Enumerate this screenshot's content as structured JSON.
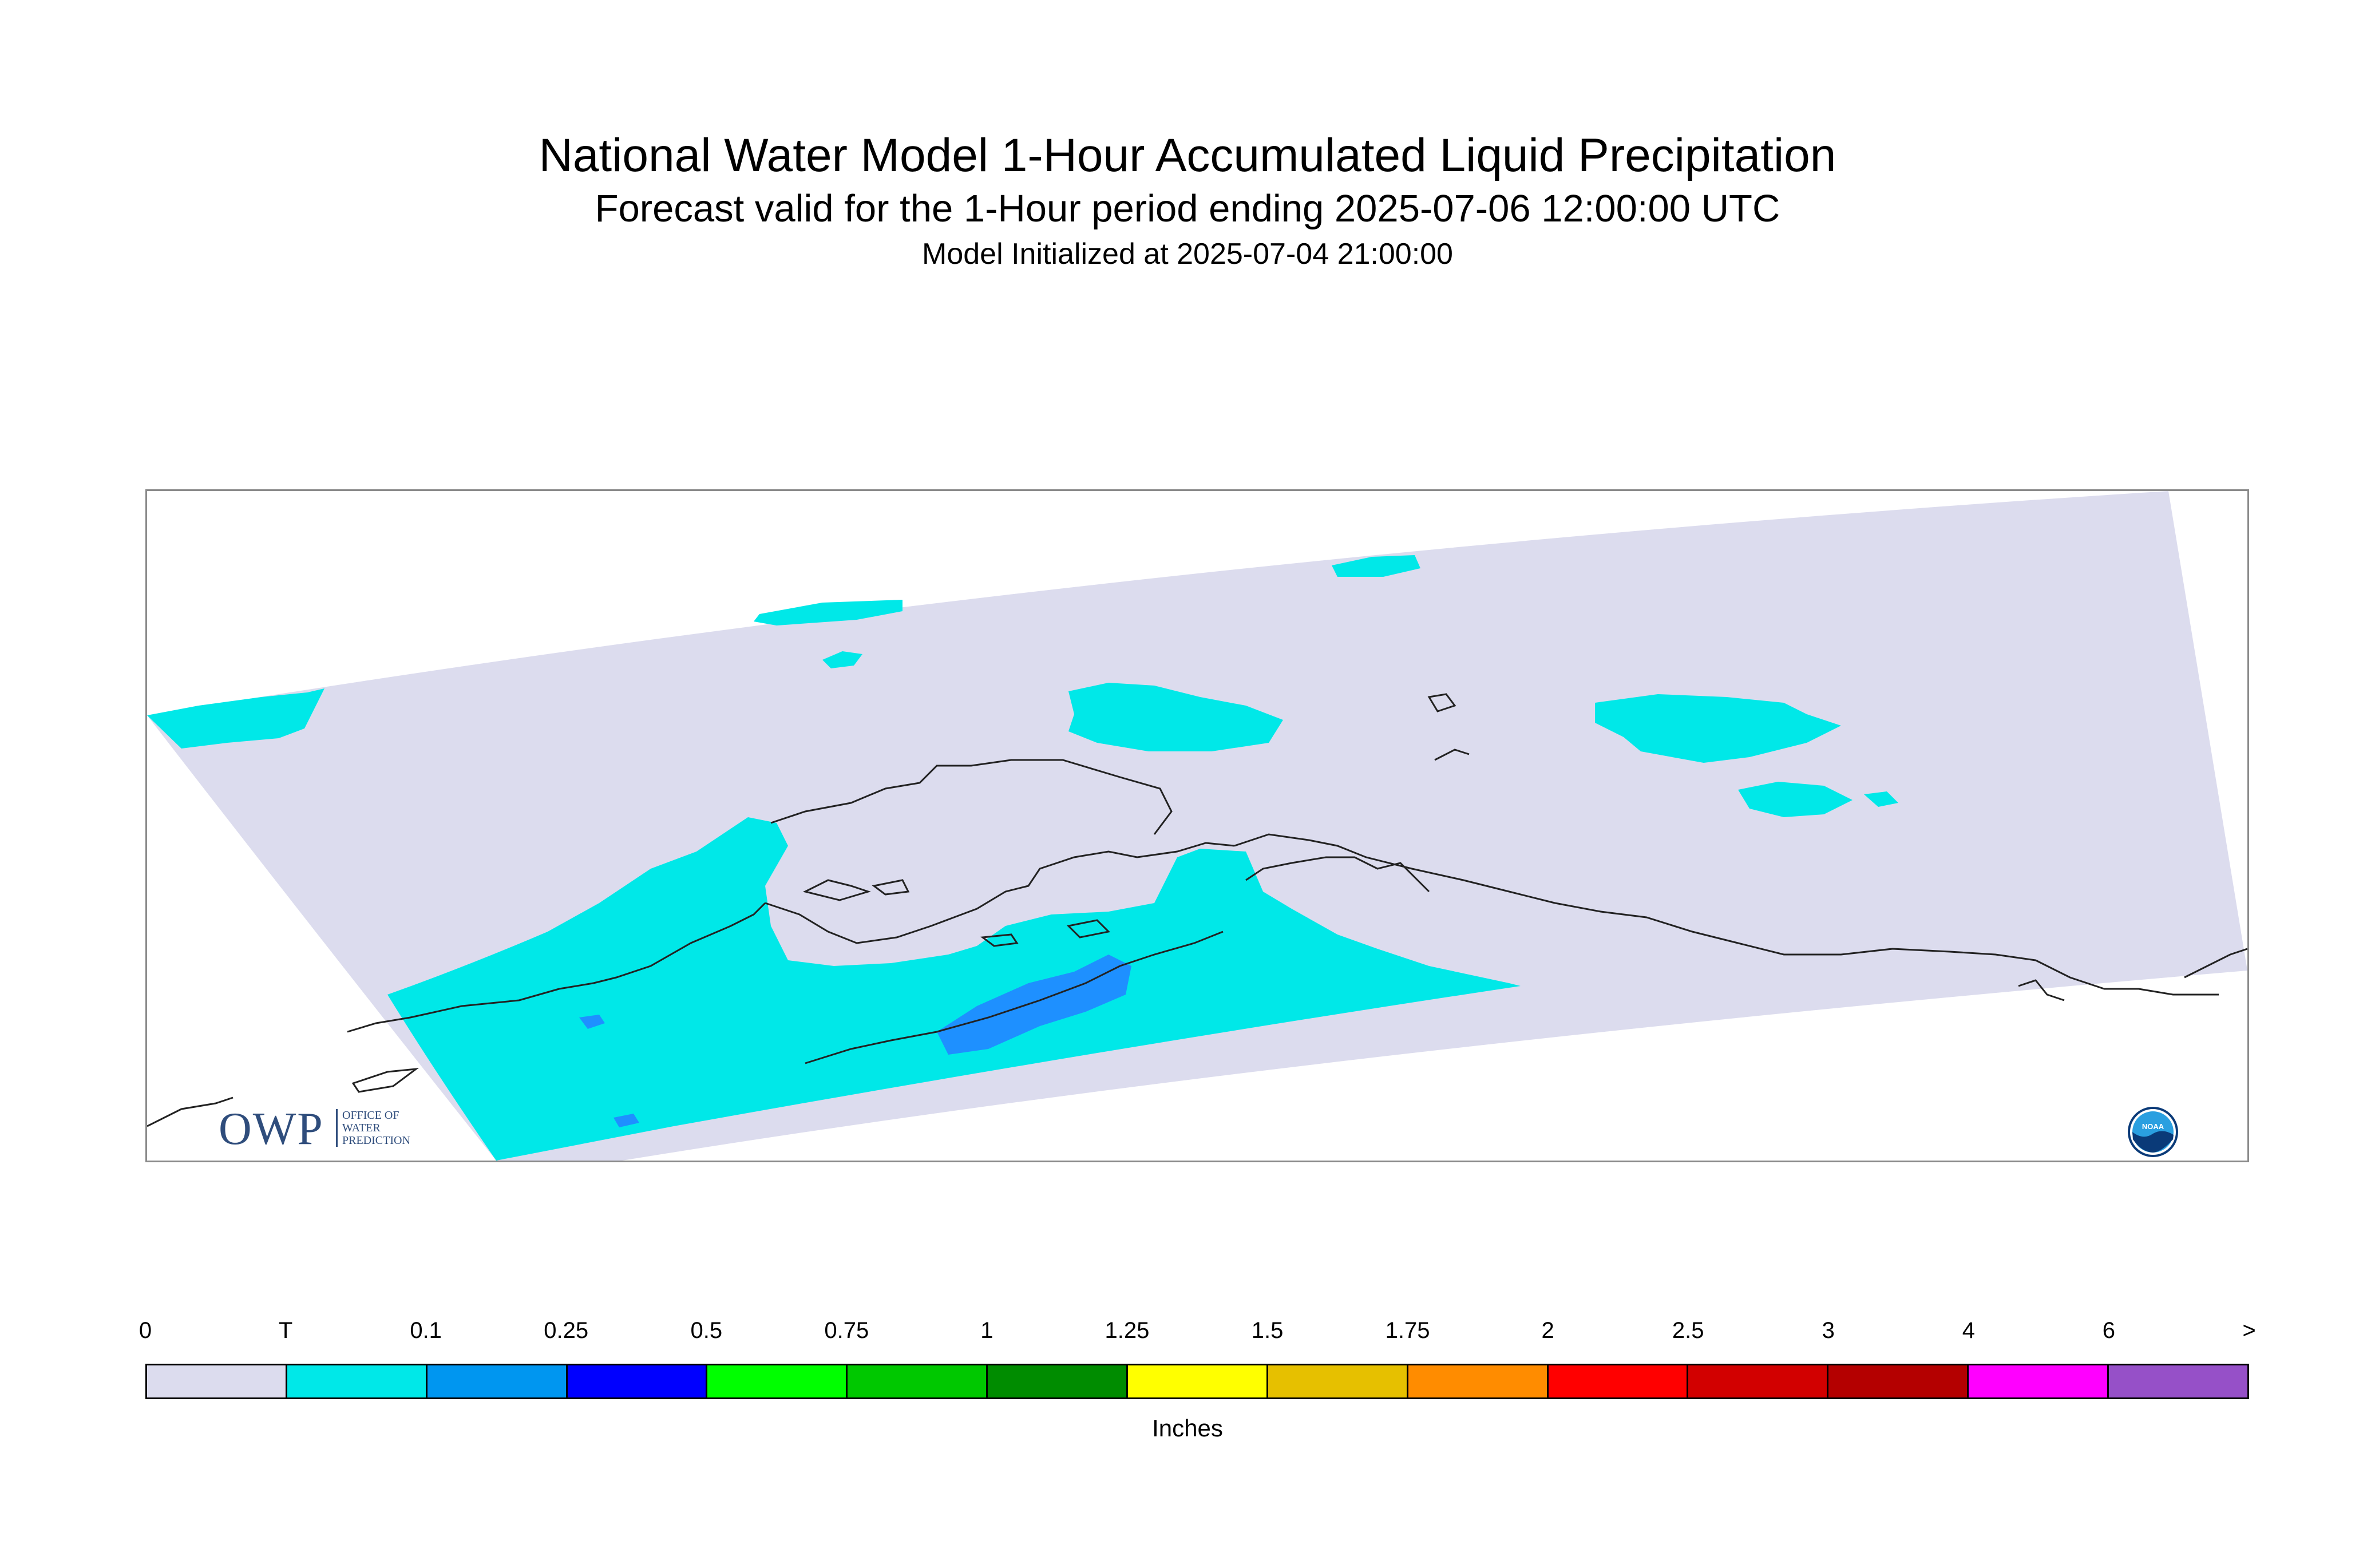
{
  "header": {
    "title": "National Water Model 1-Hour Accumulated Liquid Precipitation",
    "subtitle": "Forecast valid for the 1-Hour period ending 2025-07-06 12:00:00 UTC",
    "init_line": "Model Initialized at 2025-07-04 21:00:00"
  },
  "logos": {
    "owp_letters": "OWP",
    "owp_subtext": "Office of Water Prediction",
    "noaa_text": "NOAA"
  },
  "map": {
    "domain_color": "#dcdcee",
    "coastline_color": "#222222",
    "precip_colors": {
      "trace": "#00e8e8",
      "light": "#1e90ff"
    }
  },
  "legend": {
    "tick_labels": [
      "0",
      "T",
      "0.1",
      "0.25",
      "0.5",
      "0.75",
      "1",
      "1.25",
      "1.5",
      "1.75",
      "2",
      "2.5",
      "3",
      "4",
      "6",
      ">"
    ],
    "colors": [
      "#dcdcee",
      "#00e8e8",
      "#0096f0",
      "#0000ff",
      "#00ff00",
      "#00c800",
      "#008c00",
      "#ffff00",
      "#e6c000",
      "#ff8c00",
      "#ff0000",
      "#d20000",
      "#b40000",
      "#ff00ff",
      "#9650c8"
    ],
    "unit_label": "Inches"
  }
}
